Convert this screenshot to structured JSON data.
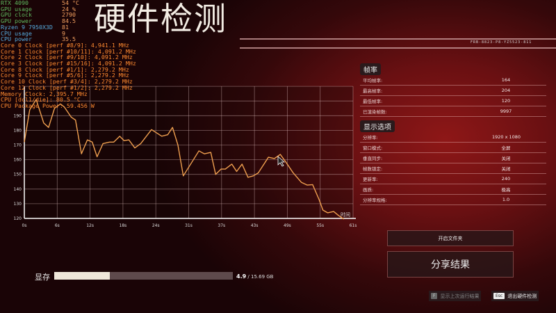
{
  "title": "硬件检测",
  "serial": "FRB-8823-P8-YZ5523-811",
  "osd": {
    "gpu": [
      {
        "label": "RTX 4090",
        "value": "54 °C",
        "c": "g"
      },
      {
        "label": "GPU usage",
        "value": "24 %",
        "c": "g"
      },
      {
        "label": "GPU clock",
        "value": "2790",
        "c": "g"
      },
      {
        "label": "GPU power",
        "value": "84.5",
        "c": "g"
      },
      {
        "label": "Ryzen 9 7950X3D",
        "value": "81",
        "c": "b"
      },
      {
        "label": "CPU usage",
        "value": "9",
        "c": "b"
      },
      {
        "label": "CPU power",
        "value": "35.5",
        "c": "b"
      }
    ],
    "lines": [
      "Core 0 Clock [perf #8/9]: 4,941.1 MHz",
      "Core 1 Clock [perf #10/11]: 4,091.2 MHz",
      "Core 2 Clock [perf #9/10]: 4,091.2 MHz",
      "Core 3 Clock [perf #15/16]: 4,091.2 MHz",
      "Core 8 Clock [perf #1/1]: 2,279.2 MHz",
      "Core 9 Clock [perf #5/6]: 2,279.2 MHz",
      "Core 10 Clock [perf #3/4]: 2,279.2 MHz",
      "Core 12 Clock [perf #1/2]: 2,279.2 MHz",
      "Memory Clock: 2,395.7 MHz",
      "CPU [dcl1/die]: 80.5 °C",
      "CPU Package Power: 59.456 W"
    ]
  },
  "chart_data": {
    "type": "line",
    "xlabel": "时间",
    "ylim": [
      120,
      210
    ],
    "yticks": [
      120,
      130,
      140,
      150,
      160,
      170,
      180,
      190
    ],
    "xticks": [
      "0s",
      "6s",
      "12s",
      "18s",
      "24s",
      "31s",
      "37s",
      "43s",
      "49s",
      "55s",
      "61s"
    ],
    "xlim": [
      0,
      61
    ],
    "color": "#f0a050",
    "points": [
      [
        0,
        172
      ],
      [
        1,
        194
      ],
      [
        2.2,
        201
      ],
      [
        3.6,
        185
      ],
      [
        4.5,
        182
      ],
      [
        5.6,
        195
      ],
      [
        6.7,
        198
      ],
      [
        7.4,
        196
      ],
      [
        8.7,
        189
      ],
      [
        9.5,
        187
      ],
      [
        10.6,
        164
      ],
      [
        11.7,
        173.5
      ],
      [
        12.6,
        172
      ],
      [
        13.5,
        162
      ],
      [
        14.6,
        171
      ],
      [
        15.8,
        172
      ],
      [
        16.6,
        172
      ],
      [
        17.7,
        176
      ],
      [
        18.5,
        173
      ],
      [
        19.4,
        173.5
      ],
      [
        20.5,
        168
      ],
      [
        21.6,
        171
      ],
      [
        23.6,
        180.5
      ],
      [
        25.5,
        176
      ],
      [
        26.6,
        177
      ],
      [
        27.5,
        182
      ],
      [
        28.5,
        170
      ],
      [
        29.5,
        149
      ],
      [
        32.4,
        166
      ],
      [
        33.4,
        164
      ],
      [
        34.6,
        165
      ],
      [
        35.5,
        150
      ],
      [
        36.5,
        153.6
      ],
      [
        37.3,
        153.6
      ],
      [
        38.5,
        157
      ],
      [
        39.4,
        152
      ],
      [
        40.4,
        157
      ],
      [
        41.5,
        148
      ],
      [
        42.5,
        149
      ],
      [
        43.4,
        151
      ],
      [
        45.3,
        161.7
      ],
      [
        46.4,
        160.8
      ],
      [
        47.5,
        163.6
      ],
      [
        48.6,
        158
      ],
      [
        49.9,
        151
      ],
      [
        51.4,
        144.6
      ],
      [
        52.5,
        142.7
      ],
      [
        53.5,
        143
      ],
      [
        54.7,
        132.8
      ],
      [
        55.4,
        125.7
      ],
      [
        56.3,
        123.8
      ],
      [
        57.4,
        124.7
      ],
      [
        58.3,
        122
      ],
      [
        59.3,
        119.5
      ]
    ]
  },
  "fps": {
    "header": "帧率",
    "rows": [
      {
        "label": "平均帧率:",
        "value": "164"
      },
      {
        "label": "最高帧率:",
        "value": "204"
      },
      {
        "label": "最低帧率:",
        "value": "120"
      },
      {
        "label": "已渲染帧数:",
        "value": "9997"
      }
    ]
  },
  "display": {
    "header": "显示选项",
    "rows": [
      {
        "label": "分辨率:",
        "value": "1920 x 1080"
      },
      {
        "label": "窗口模式:",
        "value": "全屏"
      },
      {
        "label": "垂直同步:",
        "value": "关闭"
      },
      {
        "label": "帧数锁定:",
        "value": "关闭"
      },
      {
        "label": "更新率:",
        "value": "240"
      },
      {
        "label": "画质:",
        "value": "极高"
      },
      {
        "label": "分辨率规格:",
        "value": "1.0"
      }
    ]
  },
  "buttons": {
    "open_folder": "开启文件夹",
    "share": "分享结果"
  },
  "vram": {
    "label": "显存",
    "used": "4.9",
    "total": "/ 15.69 GB",
    "fraction": 0.312
  },
  "keys": {
    "f_key": "F",
    "f_label": "显示上次运行结果",
    "esc_key": "Esc",
    "esc_label": "退出硬件检测"
  }
}
